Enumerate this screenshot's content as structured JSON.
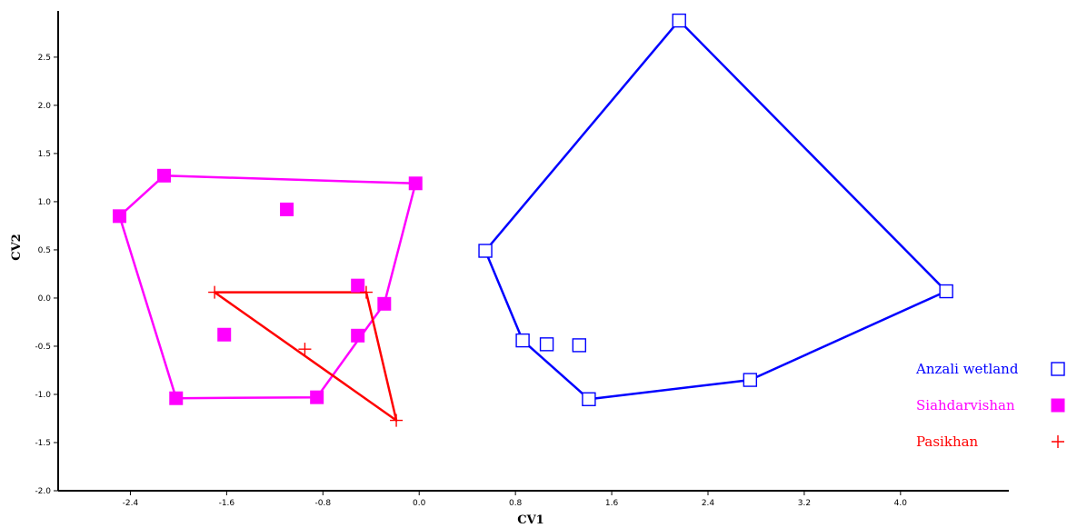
{
  "chart_data": {
    "type": "scatter",
    "title": "",
    "xlabel": "CV1",
    "ylabel": "CV2",
    "xlim": [
      -3.0,
      4.9
    ],
    "ylim": [
      -2.0,
      2.98
    ],
    "xticks": [
      {
        "value": -2.4,
        "label": "-2.4"
      },
      {
        "value": -1.6,
        "label": "-1.6"
      },
      {
        "value": -0.8,
        "label": "-0.8"
      },
      {
        "value": 0.0,
        "label": "0.0"
      },
      {
        "value": 0.8,
        "label": "0.8"
      },
      {
        "value": 1.6,
        "label": "1.6"
      },
      {
        "value": 2.4,
        "label": "2.4"
      },
      {
        "value": 3.2,
        "label": "3.2"
      },
      {
        "value": 4.0,
        "label": "4.0"
      }
    ],
    "yticks": [
      {
        "value": -2.0,
        "label": "-2.0"
      },
      {
        "value": -1.5,
        "label": "-1.5"
      },
      {
        "value": -1.0,
        "label": "-1.0"
      },
      {
        "value": -0.5,
        "label": "-0.5"
      },
      {
        "value": 0.0,
        "label": "0.0"
      },
      {
        "value": 0.5,
        "label": "0.5"
      },
      {
        "value": 1.0,
        "label": "1.0"
      },
      {
        "value": 1.5,
        "label": "1.5"
      },
      {
        "value": 2.0,
        "label": "2.0"
      },
      {
        "value": 2.5,
        "label": "2.5"
      }
    ],
    "grid": false,
    "legend_position": "right",
    "series": [
      {
        "name": "Anzali wetland",
        "color": "#0000ff",
        "marker": "square-open",
        "points": [
          {
            "x": 0.55,
            "y": 0.49
          },
          {
            "x": 0.86,
            "y": -0.44
          },
          {
            "x": 1.06,
            "y": -0.48
          },
          {
            "x": 1.33,
            "y": -0.49
          },
          {
            "x": 1.41,
            "y": -1.05
          },
          {
            "x": 2.16,
            "y": 2.88
          },
          {
            "x": 2.75,
            "y": -0.85
          },
          {
            "x": 4.38,
            "y": 0.07
          }
        ],
        "hull": [
          {
            "x": 0.55,
            "y": 0.49
          },
          {
            "x": 2.16,
            "y": 2.88
          },
          {
            "x": 4.38,
            "y": 0.07
          },
          {
            "x": 2.75,
            "y": -0.85
          },
          {
            "x": 1.41,
            "y": -1.05
          },
          {
            "x": 0.86,
            "y": -0.44
          }
        ]
      },
      {
        "name": "Siahdarvishan",
        "color": "#ff00ff",
        "marker": "square-filled",
        "points": [
          {
            "x": -2.49,
            "y": 0.85
          },
          {
            "x": -2.12,
            "y": 1.27
          },
          {
            "x": -1.62,
            "y": -0.38
          },
          {
            "x": -2.02,
            "y": -1.04
          },
          {
            "x": -1.1,
            "y": 0.92
          },
          {
            "x": -0.85,
            "y": -1.03
          },
          {
            "x": -0.51,
            "y": 0.13
          },
          {
            "x": -0.51,
            "y": -0.39
          },
          {
            "x": -0.29,
            "y": -0.06
          },
          {
            "x": -0.03,
            "y": 1.19
          }
        ],
        "hull": [
          {
            "x": -2.49,
            "y": 0.85
          },
          {
            "x": -2.12,
            "y": 1.27
          },
          {
            "x": -0.03,
            "y": 1.19
          },
          {
            "x": -0.29,
            "y": -0.06
          },
          {
            "x": -0.85,
            "y": -1.03
          },
          {
            "x": -2.02,
            "y": -1.04
          }
        ]
      },
      {
        "name": "Pasikhan",
        "color": "#ff0000",
        "marker": "plus",
        "points": [
          {
            "x": -1.7,
            "y": 0.06
          },
          {
            "x": -0.95,
            "y": -0.53
          },
          {
            "x": -0.44,
            "y": 0.06
          },
          {
            "x": -0.19,
            "y": -1.27
          }
        ],
        "hull": [
          {
            "x": -1.7,
            "y": 0.06
          },
          {
            "x": -0.44,
            "y": 0.06
          },
          {
            "x": -0.19,
            "y": -1.27
          }
        ]
      }
    ]
  }
}
